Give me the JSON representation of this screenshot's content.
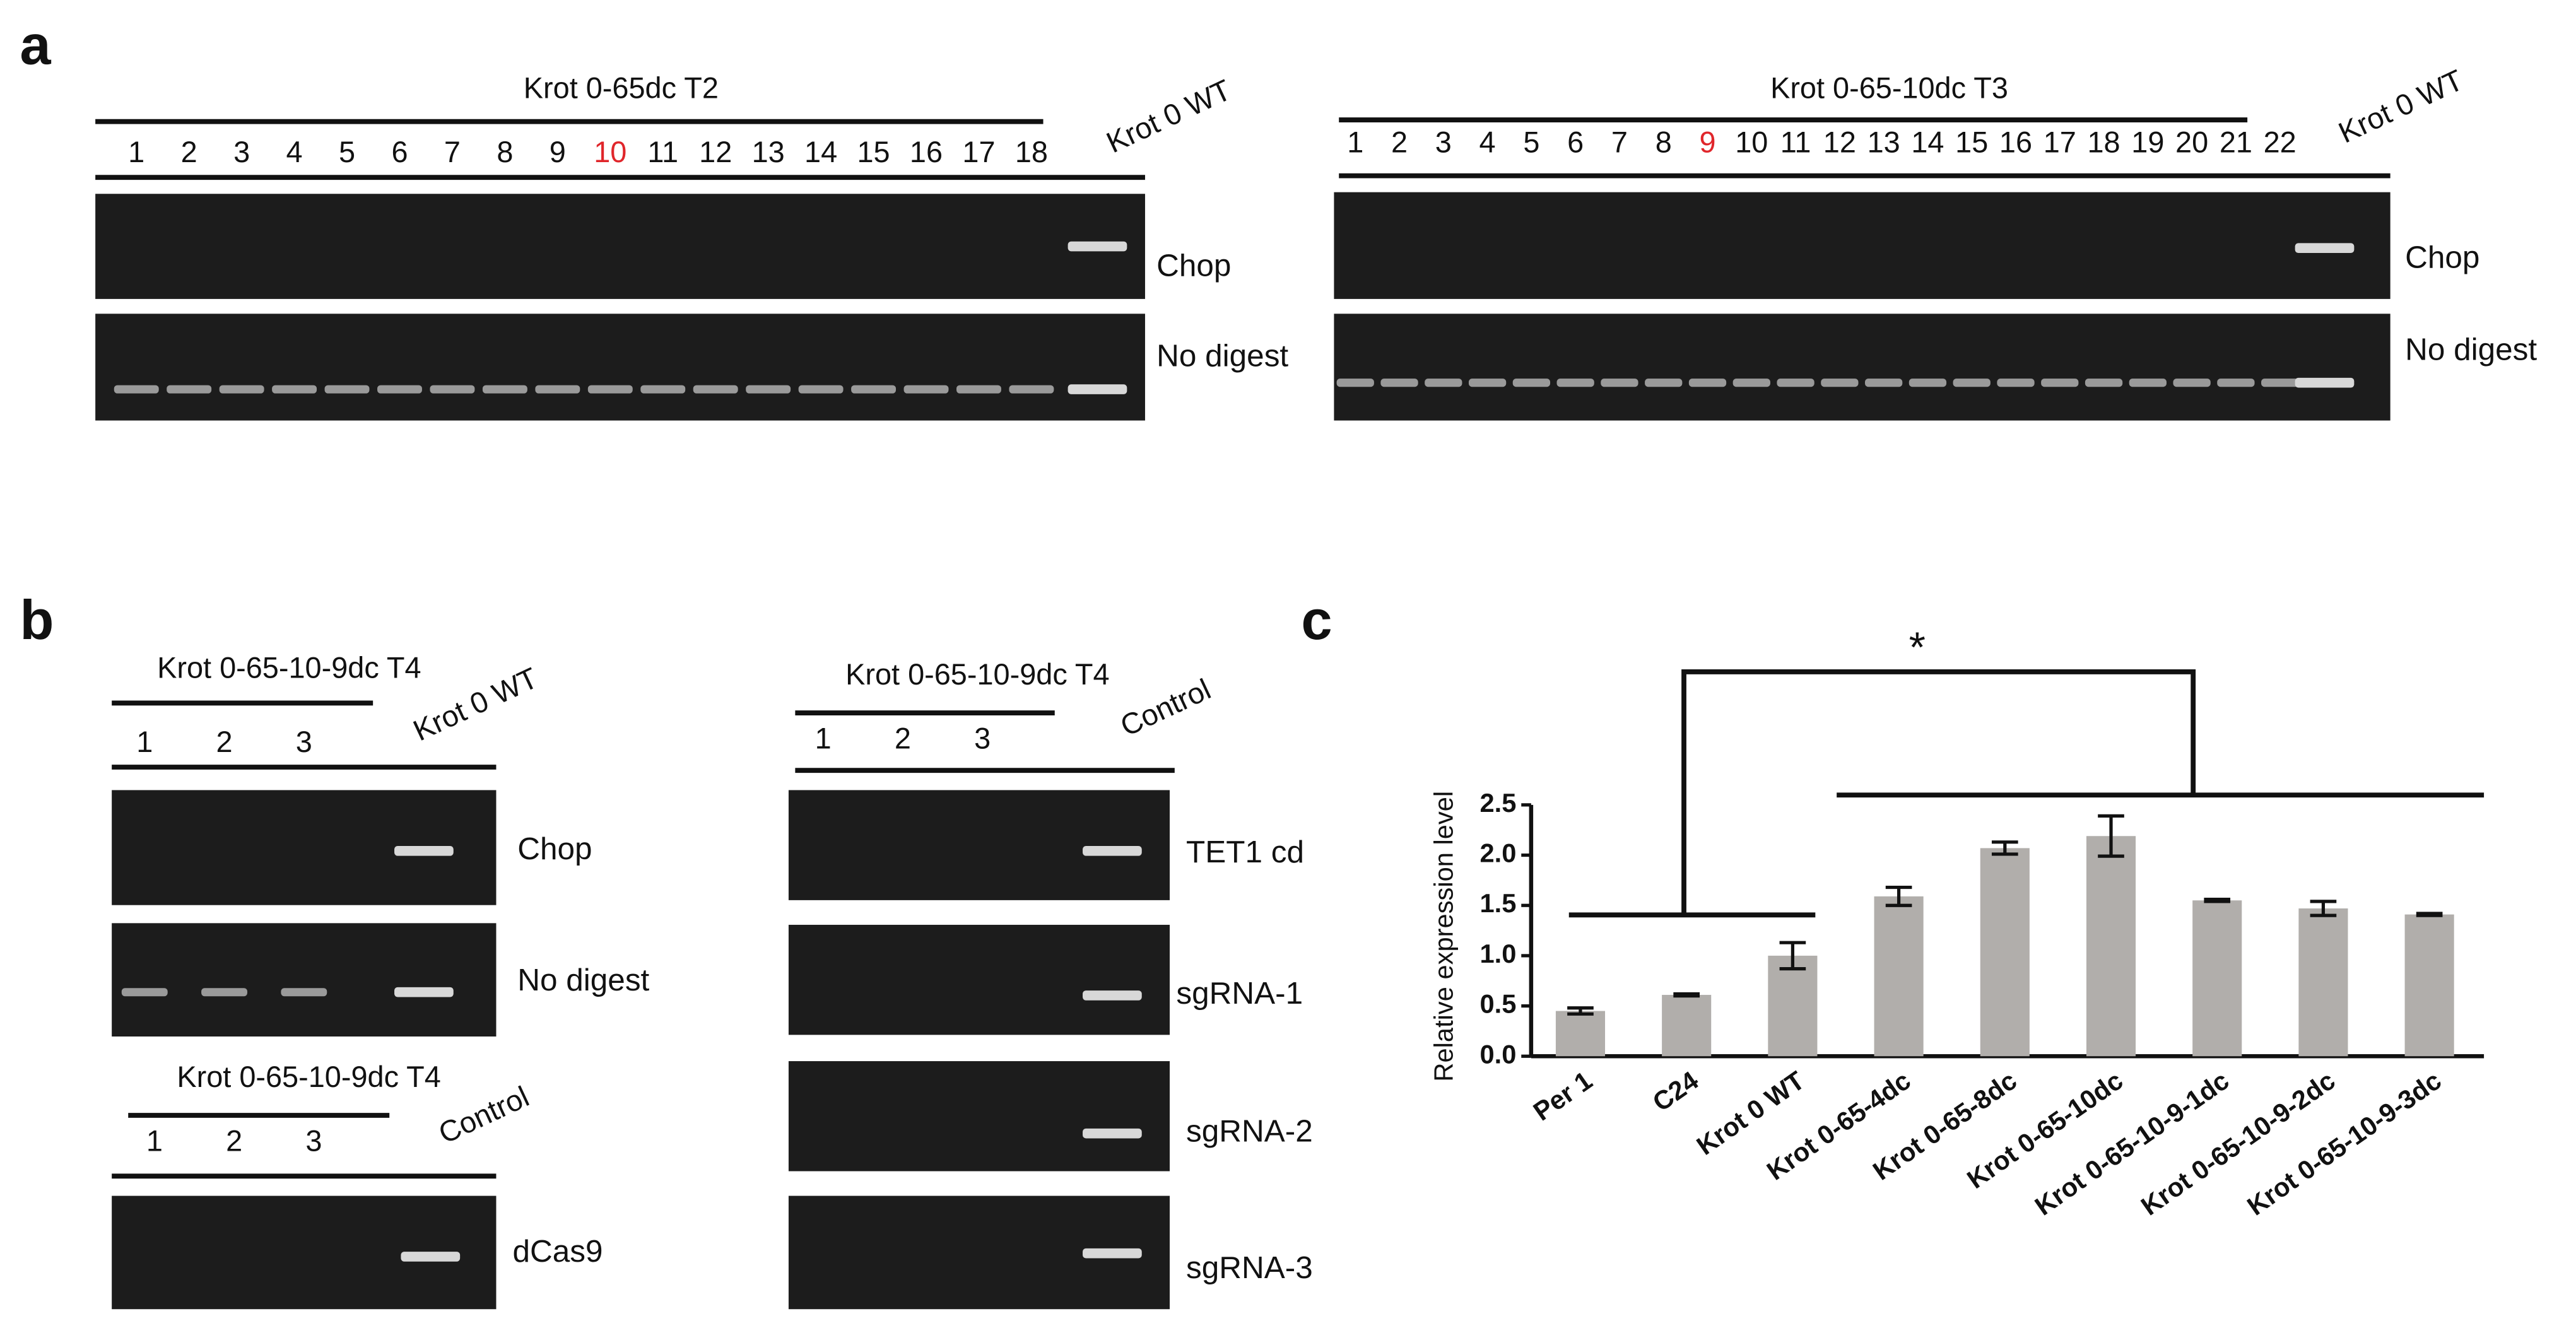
{
  "panel_labels": [
    "a",
    "b",
    "c"
  ],
  "panel_a": {
    "left": {
      "title": "Krot 0-65dc T2",
      "control": "Krot 0 WT",
      "gels": [
        "Chop",
        "No digest"
      ],
      "lanes": [
        {
          "label": "1"
        },
        {
          "label": "2"
        },
        {
          "label": "3"
        },
        {
          "label": "4"
        },
        {
          "label": "5"
        },
        {
          "label": "6"
        },
        {
          "label": "7"
        },
        {
          "label": "8"
        },
        {
          "label": "9"
        },
        {
          "label": "10",
          "color": "#e0262b"
        },
        {
          "label": "11"
        },
        {
          "label": "12"
        },
        {
          "label": "13"
        },
        {
          "label": "14"
        },
        {
          "label": "15"
        },
        {
          "label": "16"
        },
        {
          "label": "17"
        },
        {
          "label": "18"
        }
      ]
    },
    "right": {
      "title": "Krot 0-65-10dc T3",
      "control": "Krot 0 WT",
      "gels": [
        "Chop",
        "No digest"
      ],
      "lanes": [
        {
          "label": "1"
        },
        {
          "label": "2"
        },
        {
          "label": "3"
        },
        {
          "label": "4"
        },
        {
          "label": "5"
        },
        {
          "label": "6"
        },
        {
          "label": "7"
        },
        {
          "label": "8"
        },
        {
          "label": "9",
          "color": "#e0262b"
        },
        {
          "label": "10"
        },
        {
          "label": "11"
        },
        {
          "label": "12"
        },
        {
          "label": "13"
        },
        {
          "label": "14"
        },
        {
          "label": "15"
        },
        {
          "label": "16"
        },
        {
          "label": "17"
        },
        {
          "label": "18"
        },
        {
          "label": "19"
        },
        {
          "label": "20"
        },
        {
          "label": "21"
        },
        {
          "label": "22"
        }
      ]
    }
  },
  "panel_b": {
    "top_left": {
      "title": "Krot 0-65-10-9dc T4",
      "control": "Krot 0 WT",
      "gels": [
        "Chop",
        "No digest"
      ],
      "lanes": [
        {
          "label": "1"
        },
        {
          "label": "2"
        },
        {
          "label": "3"
        }
      ]
    },
    "bottom_left": {
      "title": "Krot 0-65-10-9dc T4",
      "control": "Control",
      "gels": [
        "dCas9"
      ],
      "lanes": [
        {
          "label": "1"
        },
        {
          "label": "2"
        },
        {
          "label": "3"
        }
      ]
    },
    "right": {
      "title": "Krot 0-65-10-9dc T4",
      "control": "Control",
      "gels": [
        "TET1 cd",
        "sgRNA-1",
        "sgRNA-2",
        "sgRNA-3"
      ],
      "lanes": [
        {
          "label": "1"
        },
        {
          "label": "2"
        },
        {
          "label": "3"
        }
      ]
    }
  },
  "chart_data": {
    "type": "bar",
    "ylabel": "Relative expression level",
    "annotation": "*",
    "categories": [
      "Per 1",
      "C24",
      "Krot 0 WT",
      "Krot 0-65-4dc",
      "Krot 0-65-8dc",
      "Krot 0-65-10dc",
      "Krot 0-65-10-9-1dc",
      "Krot 0-65-10-9-2dc",
      "Krot 0-65-10-9-3dc"
    ],
    "values": [
      0.45,
      0.61,
      1.0,
      1.59,
      2.07,
      2.19,
      1.55,
      1.47,
      1.41
    ],
    "errors": [
      0.03,
      0.01,
      0.13,
      0.09,
      0.06,
      0.2,
      0.01,
      0.07,
      0.01
    ],
    "color": "#b1aeab",
    "ylim": [
      0,
      2.5
    ],
    "yticks": [
      {
        "value": 0,
        "label": "0.0"
      },
      {
        "value": 0.5,
        "label": "0.5"
      },
      {
        "value": 1,
        "label": "1.0"
      },
      {
        "value": 1.5,
        "label": "1.5"
      },
      {
        "value": 2,
        "label": "2.0"
      },
      {
        "value": 2.5,
        "label": "2.5"
      }
    ]
  }
}
